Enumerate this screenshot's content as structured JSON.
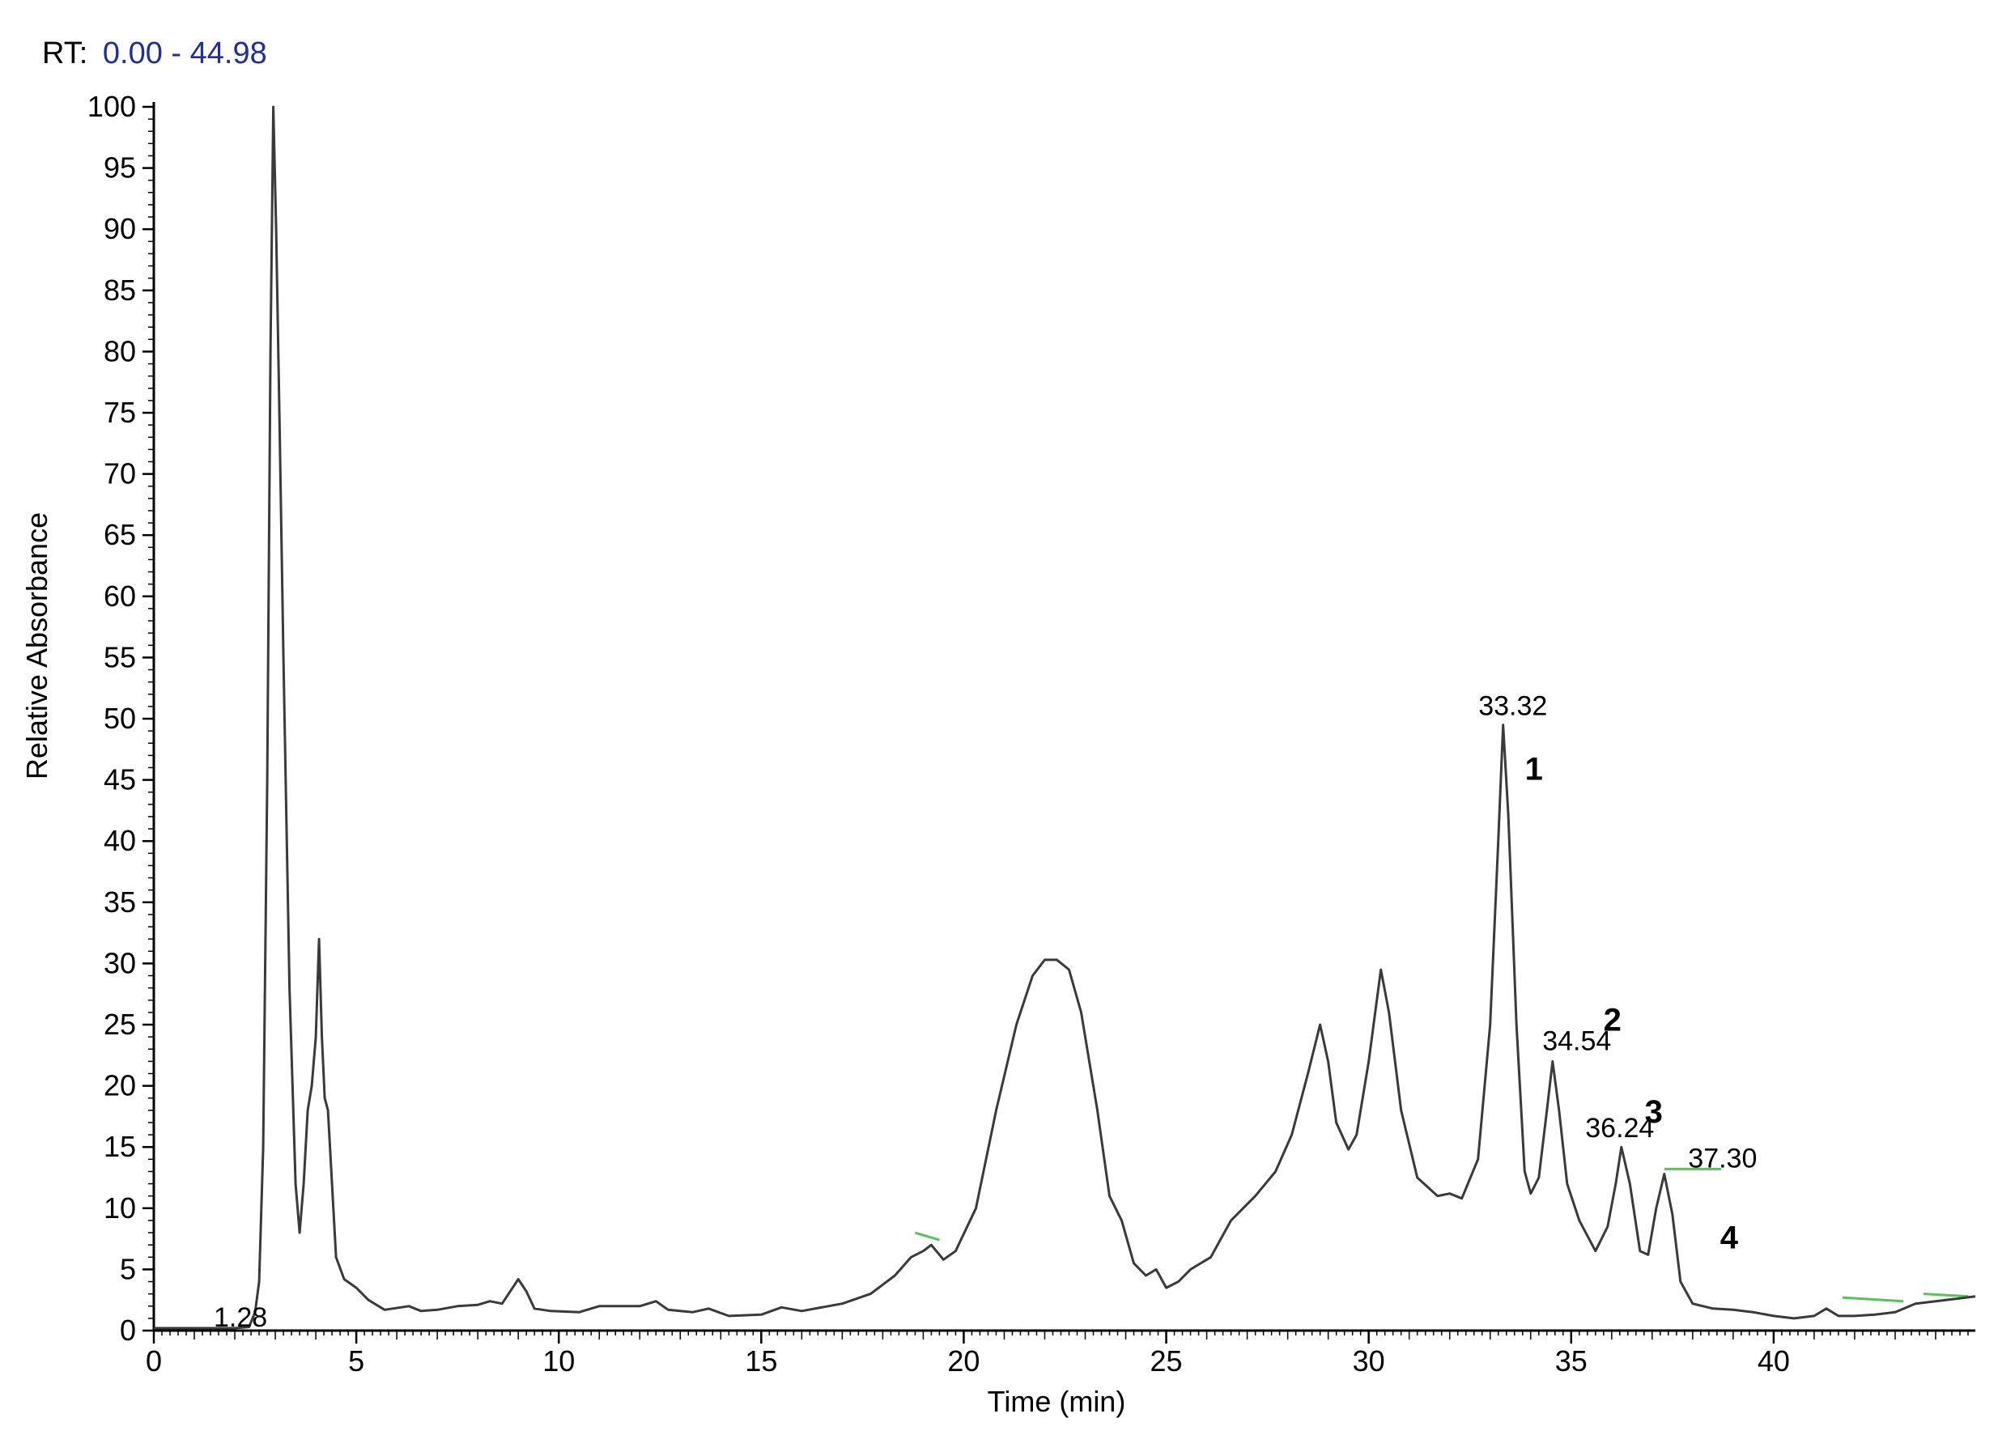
{
  "header": {
    "rt_prefix": "RT:",
    "rt_range": "0.00 - 44.98",
    "rt_range_color": "#1f2f9e"
  },
  "colors": {
    "trace": "#3a3a3a",
    "baseline_marks": "#56c456",
    "axis": "#000000"
  },
  "chart_data": {
    "type": "line",
    "title": "",
    "xlabel": "Time (min)",
    "ylabel": "Relative Absorbance",
    "xlim": [
      0,
      44.98
    ],
    "ylim": [
      0,
      100
    ],
    "x_ticks": [
      0,
      5,
      10,
      15,
      20,
      25,
      30,
      35,
      40
    ],
    "y_ticks": [
      0,
      5,
      10,
      15,
      20,
      25,
      30,
      35,
      40,
      45,
      50,
      55,
      60,
      65,
      70,
      75,
      80,
      85,
      90,
      95,
      100
    ],
    "series": [
      {
        "points": [
          [
            0.0,
            0.2
          ],
          [
            1.0,
            0.2
          ],
          [
            2.0,
            0.2
          ],
          [
            2.35,
            0.3
          ],
          [
            2.5,
            1.5
          ],
          [
            2.6,
            4
          ],
          [
            2.7,
            15
          ],
          [
            2.8,
            45
          ],
          [
            2.88,
            80
          ],
          [
            2.95,
            100
          ],
          [
            3.02,
            90
          ],
          [
            3.1,
            75
          ],
          [
            3.2,
            55
          ],
          [
            3.35,
            28
          ],
          [
            3.5,
            12
          ],
          [
            3.6,
            8
          ],
          [
            3.7,
            12
          ],
          [
            3.8,
            18
          ],
          [
            3.9,
            20
          ],
          [
            4.0,
            24
          ],
          [
            4.08,
            32
          ],
          [
            4.15,
            24
          ],
          [
            4.22,
            19
          ],
          [
            4.3,
            18
          ],
          [
            4.4,
            12
          ],
          [
            4.5,
            6
          ],
          [
            4.7,
            4.2
          ],
          [
            5.0,
            3.5
          ],
          [
            5.3,
            2.5
          ],
          [
            5.7,
            1.7
          ],
          [
            6.3,
            2.0
          ],
          [
            6.6,
            1.6
          ],
          [
            7.0,
            1.7
          ],
          [
            7.5,
            2.0
          ],
          [
            8.0,
            2.1
          ],
          [
            8.3,
            2.4
          ],
          [
            8.6,
            2.2
          ],
          [
            9.0,
            4.2
          ],
          [
            9.2,
            3.2
          ],
          [
            9.4,
            1.8
          ],
          [
            9.8,
            1.6
          ],
          [
            10.5,
            1.5
          ],
          [
            11.0,
            2.0
          ],
          [
            12.0,
            2.0
          ],
          [
            12.4,
            2.4
          ],
          [
            12.7,
            1.7
          ],
          [
            13.3,
            1.5
          ],
          [
            13.7,
            1.8
          ],
          [
            14.2,
            1.2
          ],
          [
            15.0,
            1.3
          ],
          [
            15.5,
            1.9
          ],
          [
            16.0,
            1.6
          ],
          [
            17.0,
            2.2
          ],
          [
            17.7,
            3.0
          ],
          [
            18.3,
            4.5
          ],
          [
            18.7,
            6.0
          ],
          [
            19.0,
            6.5
          ],
          [
            19.2,
            7.0
          ],
          [
            19.5,
            5.8
          ],
          [
            19.8,
            6.5
          ],
          [
            20.3,
            10
          ],
          [
            20.8,
            18
          ],
          [
            21.3,
            25
          ],
          [
            21.7,
            29
          ],
          [
            22.0,
            30.3
          ],
          [
            22.3,
            30.3
          ],
          [
            22.6,
            29.5
          ],
          [
            22.9,
            26
          ],
          [
            23.3,
            18
          ],
          [
            23.6,
            11
          ],
          [
            23.9,
            9
          ],
          [
            24.2,
            5.5
          ],
          [
            24.5,
            4.5
          ],
          [
            24.75,
            5.0
          ],
          [
            25.0,
            3.5
          ],
          [
            25.3,
            4.0
          ],
          [
            25.6,
            5.0
          ],
          [
            26.1,
            6.0
          ],
          [
            26.6,
            9.0
          ],
          [
            27.2,
            11
          ],
          [
            27.7,
            13
          ],
          [
            28.1,
            16
          ],
          [
            28.5,
            21
          ],
          [
            28.8,
            25
          ],
          [
            29.0,
            22
          ],
          [
            29.2,
            17
          ],
          [
            29.5,
            14.8
          ],
          [
            29.7,
            16
          ],
          [
            30.0,
            22
          ],
          [
            30.3,
            29.5
          ],
          [
            30.5,
            26
          ],
          [
            30.8,
            18
          ],
          [
            31.2,
            12.5
          ],
          [
            31.7,
            11.0
          ],
          [
            32.0,
            11.2
          ],
          [
            32.3,
            10.8
          ],
          [
            32.7,
            14
          ],
          [
            33.0,
            25
          ],
          [
            33.2,
            40
          ],
          [
            33.32,
            49.5
          ],
          [
            33.45,
            42
          ],
          [
            33.65,
            25
          ],
          [
            33.85,
            13
          ],
          [
            34.0,
            11.2
          ],
          [
            34.2,
            12.5
          ],
          [
            34.4,
            18
          ],
          [
            34.54,
            22
          ],
          [
            34.7,
            18
          ],
          [
            34.9,
            12
          ],
          [
            35.2,
            9
          ],
          [
            35.6,
            6.5
          ],
          [
            35.9,
            8.5
          ],
          [
            36.1,
            12
          ],
          [
            36.24,
            15
          ],
          [
            36.45,
            12
          ],
          [
            36.7,
            6.5
          ],
          [
            36.9,
            6.2
          ],
          [
            37.1,
            10
          ],
          [
            37.3,
            12.8
          ],
          [
            37.5,
            9.5
          ],
          [
            37.7,
            4.0
          ],
          [
            38.0,
            2.2
          ],
          [
            38.5,
            1.8
          ],
          [
            39.0,
            1.7
          ],
          [
            39.5,
            1.5
          ],
          [
            40.0,
            1.2
          ],
          [
            40.5,
            1.0
          ],
          [
            41.0,
            1.2
          ],
          [
            41.3,
            1.8
          ],
          [
            41.6,
            1.2
          ],
          [
            42.0,
            1.2
          ],
          [
            42.5,
            1.3
          ],
          [
            43.0,
            1.5
          ],
          [
            43.5,
            2.2
          ],
          [
            44.0,
            2.4
          ],
          [
            44.5,
            2.6
          ],
          [
            44.98,
            2.8
          ]
        ]
      }
    ],
    "annotations": [
      {
        "text": "1.28",
        "x": 1.28,
        "y": 0.2,
        "kind": "rt"
      },
      {
        "text": "33.32",
        "x": 33.32,
        "y": 49.5,
        "kind": "rt"
      },
      {
        "text": "34.54",
        "x": 34.54,
        "y": 22,
        "kind": "rt"
      },
      {
        "text": "36.24",
        "x": 36.24,
        "y": 15,
        "kind": "rt"
      },
      {
        "text": "37.30",
        "x": 37.3,
        "y": 12.8,
        "kind": "rt"
      },
      {
        "text": "1",
        "x": 33.32,
        "y": 49.5,
        "kind": "peak-number"
      },
      {
        "text": "2",
        "x": 34.54,
        "y": 22,
        "kind": "peak-number"
      },
      {
        "text": "3",
        "x": 36.24,
        "y": 15,
        "kind": "peak-number"
      },
      {
        "text": "4",
        "x": 37.3,
        "y": 12.8,
        "kind": "peak-number"
      }
    ],
    "baseline_marks": [
      {
        "x": [
          18.8,
          19.4
        ],
        "y": [
          8.0,
          7.4
        ]
      },
      {
        "x": [
          37.3,
          38.7
        ],
        "y": [
          13.2,
          13.2
        ]
      },
      {
        "x": [
          41.7,
          43.2
        ],
        "y": [
          2.7,
          2.4
        ]
      },
      {
        "x": [
          43.7,
          44.8
        ],
        "y": [
          3.0,
          2.8
        ]
      }
    ],
    "grid": false,
    "legend": "none"
  }
}
